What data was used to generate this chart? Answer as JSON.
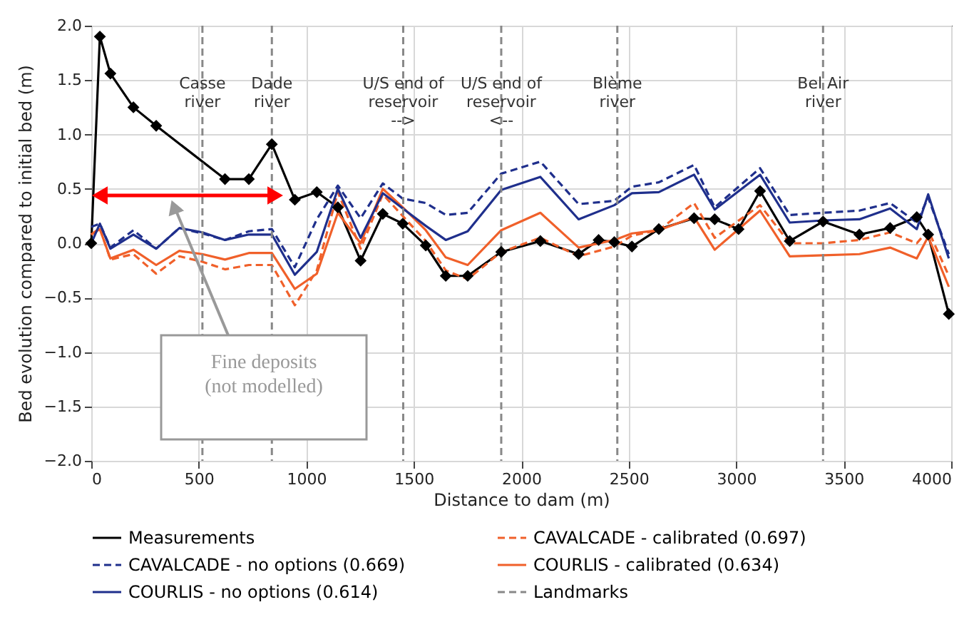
{
  "chart_data": {
    "type": "line",
    "xlabel": "Distance to dam (m)",
    "ylabel": "Bed evolution compared to initial bed (m)",
    "xlim": [
      0,
      4000
    ],
    "ylim": [
      -2,
      2
    ],
    "xticks": [
      0,
      500,
      1000,
      1500,
      2000,
      2500,
      3000,
      3500,
      4000
    ],
    "yticks": [
      {
        "value": -2,
        "label": "−2.0"
      },
      {
        "value": -1.5,
        "label": "−1.5"
      },
      {
        "value": -1,
        "label": "−1.0"
      },
      {
        "value": -0.5,
        "label": "−0.5"
      },
      {
        "value": 0,
        "label": "0.0"
      },
      {
        "value": 0.5,
        "label": "0.5"
      },
      {
        "value": 1,
        "label": "1.0"
      },
      {
        "value": 1.5,
        "label": "1.5"
      },
      {
        "value": 2,
        "label": "2.0"
      }
    ],
    "grid": true,
    "legend": "bottom",
    "x": [
      0,
      40,
      89,
      196,
      302,
      410,
      517,
      622,
      733,
      840,
      947,
      1049,
      1147,
      1253,
      1356,
      1449,
      1556,
      1649,
      1751,
      1907,
      2089,
      2267,
      2433,
      2515,
      2640,
      2804,
      2900,
      3111,
      3249,
      3404,
      3573,
      3716,
      3840,
      3893,
      3989
    ],
    "series": [
      {
        "name": "Measurements",
        "color": "#000000",
        "line_style": "solid",
        "marker": "diamond",
        "x": [
          0,
          40,
          89,
          196,
          302,
          622,
          733,
          840,
          947,
          1049,
          1147,
          1253,
          1356,
          1449,
          1556,
          1649,
          1751,
          1907,
          2089,
          2267,
          2360,
          2433,
          2515,
          2640,
          2804,
          2900,
          3011,
          3111,
          3249,
          3404,
          3573,
          3716,
          3840,
          3893,
          3989
        ],
        "values": [
          0,
          1.9,
          1.56,
          1.25,
          1.08,
          0.59,
          0.59,
          0.91,
          0.4,
          0.47,
          0.33,
          -0.16,
          0.27,
          0.18,
          -0.02,
          -0.3,
          -0.3,
          -0.08,
          0.02,
          -0.1,
          0.03,
          0.01,
          -0.03,
          0.13,
          0.23,
          0.22,
          0.13,
          0.48,
          0.02,
          0.2,
          0.08,
          0.14,
          0.24,
          0.08,
          -0.65
        ]
      },
      {
        "name": "CAVALCADE - calibrated (0.697)",
        "color": "#f0602a",
        "line_style": "dashed",
        "values": [
          0.08,
          0.14,
          -0.15,
          -0.1,
          -0.28,
          -0.12,
          -0.17,
          -0.24,
          -0.2,
          -0.2,
          -0.57,
          -0.25,
          0.47,
          -0.05,
          0.45,
          0.25,
          0.02,
          -0.25,
          -0.33,
          -0.08,
          0.05,
          -0.12,
          -0.03,
          0.07,
          0.12,
          0.37,
          0.05,
          0.35,
          0.0,
          0.0,
          0.03,
          0.1,
          0.0,
          0.12,
          -0.3
        ]
      },
      {
        "name": "CAVALCADE - no options (0.669)",
        "color": "#1f2f8c",
        "line_style": "dashed",
        "values": [
          0.15,
          0.18,
          -0.04,
          0.12,
          -0.05,
          0.14,
          0.09,
          0.03,
          0.11,
          0.13,
          -0.22,
          0.22,
          0.53,
          0.23,
          0.55,
          0.41,
          0.37,
          0.26,
          0.28,
          0.64,
          0.75,
          0.36,
          0.39,
          0.52,
          0.56,
          0.72,
          0.33,
          0.69,
          0.26,
          0.28,
          0.3,
          0.37,
          0.19,
          0.42,
          -0.1
        ]
      },
      {
        "name": "COURLIS - calibrated (0.634)",
        "color": "#f0602a",
        "line_style": "solid",
        "values": [
          0.08,
          0.13,
          -0.14,
          -0.06,
          -0.2,
          -0.07,
          -0.1,
          -0.15,
          -0.09,
          -0.09,
          -0.42,
          -0.28,
          0.28,
          0.0,
          0.5,
          0.33,
          0.12,
          -0.13,
          -0.2,
          0.12,
          0.28,
          -0.04,
          0.03,
          0.09,
          0.12,
          0.24,
          -0.06,
          0.3,
          -0.12,
          -0.11,
          -0.1,
          -0.04,
          -0.14,
          0.06,
          -0.4
        ]
      },
      {
        "name": "COURLIS - no options (0.614)",
        "color": "#1f2f8c",
        "line_style": "solid",
        "values": [
          0,
          0.18,
          -0.05,
          0.08,
          -0.05,
          0.14,
          0.1,
          0.03,
          0.08,
          0.08,
          -0.29,
          -0.08,
          0.5,
          0.05,
          0.46,
          0.32,
          0.16,
          0.03,
          0.11,
          0.49,
          0.61,
          0.22,
          0.35,
          0.46,
          0.47,
          0.63,
          0.31,
          0.63,
          0.19,
          0.21,
          0.22,
          0.32,
          0.13,
          0.45,
          -0.14
        ]
      }
    ],
    "ref_lines": [
      {
        "axis": "x",
        "value": 517,
        "label": "Casse\nriver",
        "color": "#888888",
        "line_style": "dashed"
      },
      {
        "axis": "x",
        "value": 840,
        "label": "Dade\nriver",
        "color": "#888888",
        "line_style": "dashed"
      },
      {
        "axis": "x",
        "value": 1451,
        "label": "U/S end of\nreservoir\n-->",
        "color": "#888888",
        "line_style": "dashed"
      },
      {
        "axis": "x",
        "value": 1907,
        "label": "U/S end of\nreservoir\n<--",
        "color": "#888888",
        "line_style": "dashed"
      },
      {
        "axis": "x",
        "value": 2447,
        "label": "Blème\nriver",
        "color": "#888888",
        "line_style": "dashed"
      },
      {
        "axis": "x",
        "value": 3404,
        "label": "Bel Air\nriver",
        "color": "#888888",
        "line_style": "dashed"
      }
    ],
    "annotations": [
      "Landmarks",
      "Fine deposits\n(not modelled)"
    ]
  }
}
